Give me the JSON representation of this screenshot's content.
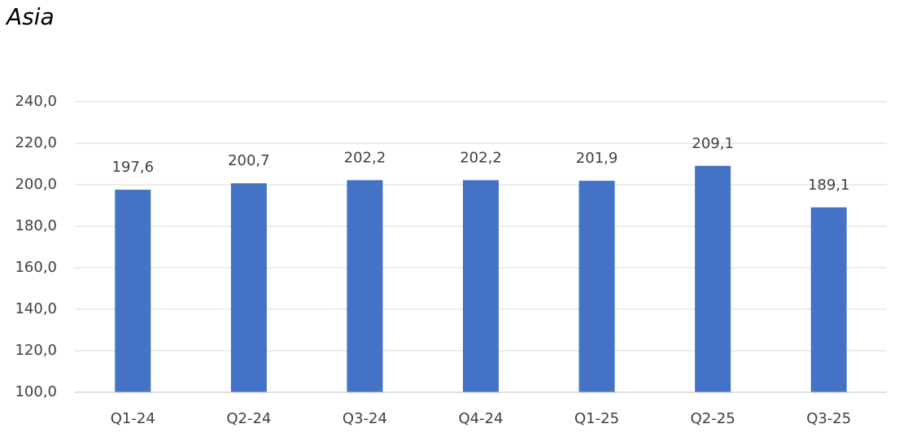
{
  "chart_data": {
    "type": "bar",
    "title": "Asia",
    "categories": [
      "Q1-24",
      "Q2-24",
      "Q3-24",
      "Q4-24",
      "Q1-25",
      "Q2-25",
      "Q3-25"
    ],
    "values": [
      197.6,
      200.7,
      202.2,
      202.2,
      201.9,
      209.1,
      189.1
    ],
    "value_labels": [
      "197,6",
      "200,7",
      "202,2",
      "202,2",
      "201,9",
      "209,1",
      "189,1"
    ],
    "color": "#4472c4",
    "ylim": [
      100,
      240
    ],
    "yticks": [
      {
        "value": 100,
        "label": "100,0"
      },
      {
        "value": 120,
        "label": "120,0"
      },
      {
        "value": 140,
        "label": "140,0"
      },
      {
        "value": 160,
        "label": "160,0"
      },
      {
        "value": 180,
        "label": "180,0"
      },
      {
        "value": 200,
        "label": "200,0"
      },
      {
        "value": 220,
        "label": "220,0"
      },
      {
        "value": 240,
        "label": "240,0"
      }
    ],
    "grid": true
  }
}
